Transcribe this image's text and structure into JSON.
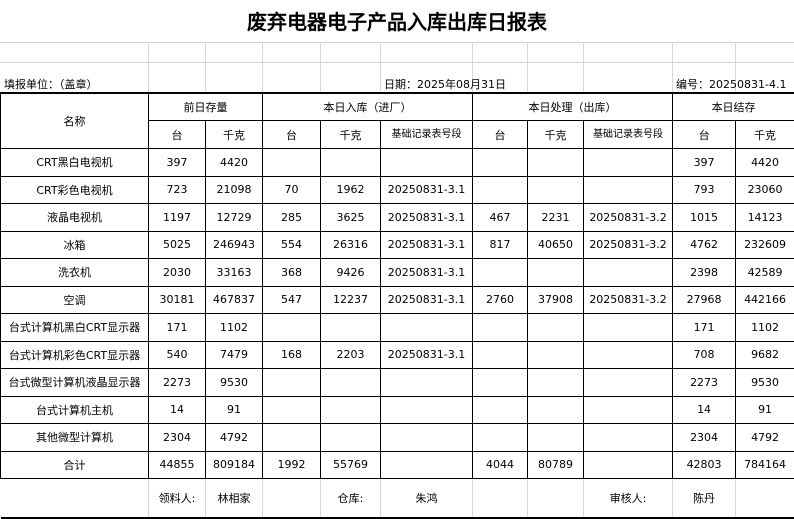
{
  "title": "废弃电器电子产品入库出库日报表",
  "info": {
    "unit": "填报单位：（盖章）",
    "date": "日期：2025年08月31日",
    "number": "编号：20250831-4.1"
  },
  "headers": {
    "name": "名称",
    "prev": "前日存量",
    "in": "本日入库（进厂）",
    "out": "本日处理（出库）",
    "stock": "本日结存",
    "tai": "台",
    "kg": "千克",
    "record": "基础记录表号段"
  },
  "rows": [
    [
      "CRT黑白电视机",
      "397",
      "4420",
      "",
      "",
      "",
      "",
      "",
      "",
      "397",
      "4420"
    ],
    [
      "CRT彩色电视机",
      "723",
      "21098",
      "70",
      "1962",
      "20250831-3.1",
      "",
      "",
      "",
      "793",
      "23060"
    ],
    [
      "液晶电视机",
      "1197",
      "12729",
      "285",
      "3625",
      "20250831-3.1",
      "467",
      "2231",
      "20250831-3.2",
      "1015",
      "14123"
    ],
    [
      "冰箱",
      "5025",
      "246943",
      "554",
      "26316",
      "20250831-3.1",
      "817",
      "40650",
      "20250831-3.2",
      "4762",
      "232609"
    ],
    [
      "洗衣机",
      "2030",
      "33163",
      "368",
      "9426",
      "20250831-3.1",
      "",
      "",
      "",
      "2398",
      "42589"
    ],
    [
      "空调",
      "30181",
      "467837",
      "547",
      "12237",
      "20250831-3.1",
      "2760",
      "37908",
      "20250831-3.2",
      "27968",
      "442166"
    ],
    [
      "台式计算机黑白CRT显示器",
      "171",
      "1102",
      "",
      "",
      "",
      "",
      "",
      "",
      "171",
      "1102"
    ],
    [
      "台式计算机彩色CRT显示器",
      "540",
      "7479",
      "168",
      "2203",
      "20250831-3.1",
      "",
      "",
      "",
      "708",
      "9682"
    ],
    [
      "台式微型计算机液晶显示器",
      "2273",
      "9530",
      "",
      "",
      "",
      "",
      "",
      "",
      "2273",
      "9530"
    ],
    [
      "台式计算机主机",
      "14",
      "91",
      "",
      "",
      "",
      "",
      "",
      "",
      "14",
      "91"
    ],
    [
      "其他微型计算机",
      "2304",
      "4792",
      "",
      "",
      "",
      "",
      "",
      "",
      "2304",
      "4792"
    ],
    [
      "合计",
      "44855",
      "809184",
      "1992",
      "55769",
      "",
      "4044",
      "80789",
      "",
      "42803",
      "784164"
    ]
  ],
  "footer": {
    "receiver_label": "领料人:",
    "receiver": "林相家",
    "warehouse_label": "仓库:",
    "warehouse": "朱鸿",
    "reviewer_label": "审核人:",
    "reviewer": "陈丹"
  }
}
